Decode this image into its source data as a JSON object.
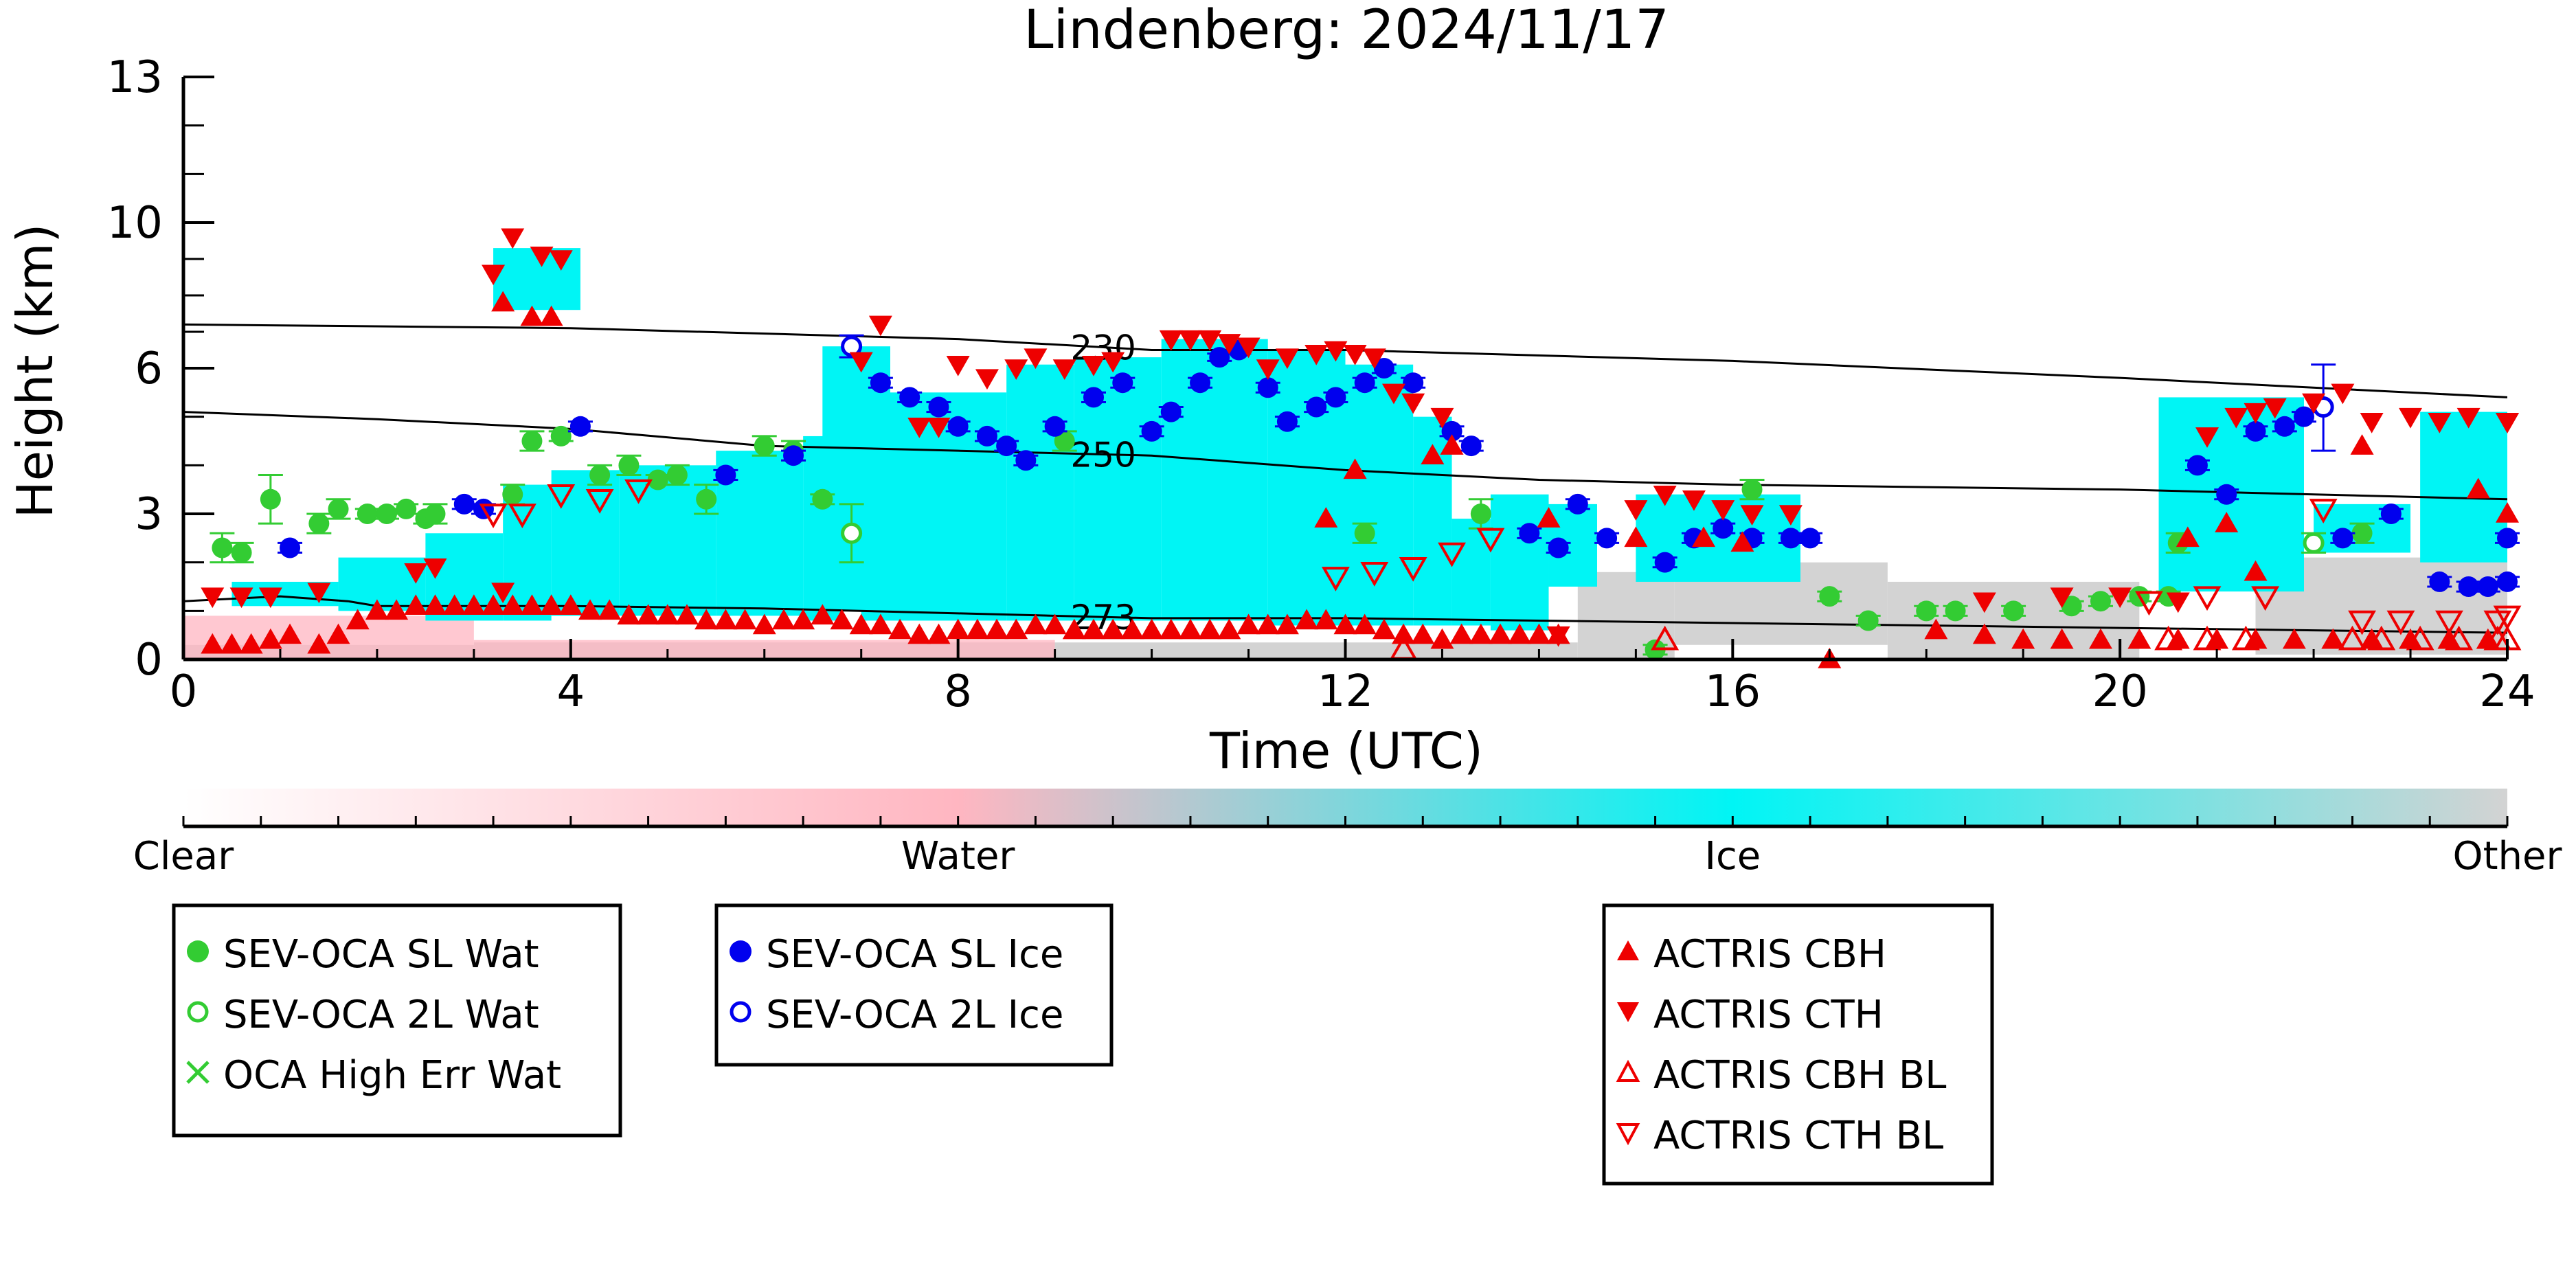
{
  "chart_data": {
    "type": "scatter",
    "title": "Lindenberg: 2024/11/17",
    "xlabel": "Time (UTC)",
    "ylabel": "Height (km)",
    "xlim": [
      0,
      24
    ],
    "ylim": [
      0,
      13
    ],
    "x_ticks": [
      0,
      4,
      8,
      12,
      16,
      20,
      24
    ],
    "y_ticks": [
      0,
      3,
      6,
      10,
      13
    ],
    "y_scale": "piecewise-linear",
    "colorbar": {
      "labels": [
        "Clear",
        "Water",
        "Ice",
        "Other"
      ],
      "colors": [
        "#ffffff",
        "#ffb6c1",
        "#00f5f5",
        "#d3d3d3"
      ]
    },
    "contour_lines": [
      {
        "label": "230",
        "x": [
          0,
          4,
          8,
          10,
          12,
          16,
          20,
          24
        ],
        "y": [
          7.2,
          7.1,
          6.8,
          6.5,
          6.5,
          6.2,
          5.8,
          5.4
        ]
      },
      {
        "label": "250",
        "x": [
          0,
          2,
          4,
          6,
          8,
          10,
          12,
          14,
          16,
          18,
          20,
          24
        ],
        "y": [
          5.1,
          4.95,
          4.75,
          4.4,
          4.3,
          4.2,
          3.9,
          3.7,
          3.6,
          3.55,
          3.5,
          3.3
        ]
      },
      {
        "label": "273",
        "x": [
          0,
          1,
          1.7,
          2,
          4,
          6,
          8,
          10,
          12,
          14,
          16,
          18,
          20,
          22,
          24
        ],
        "y": [
          1.2,
          1.3,
          1.2,
          1.1,
          1.1,
          1.05,
          0.95,
          0.85,
          0.85,
          0.8,
          0.75,
          0.7,
          0.65,
          0.6,
          0.55
        ]
      }
    ],
    "series": [
      {
        "name": "SEV-OCA SL Wat",
        "color": "#33cc33",
        "marker": "filled-circle",
        "x": [
          0.4,
          0.6,
          0.9,
          1.4,
          1.6,
          1.9,
          2.1,
          2.3,
          2.5,
          2.6,
          3.4,
          3.6,
          3.9,
          4.3,
          4.6,
          4.9,
          5.1,
          5.4,
          6.0,
          6.3,
          6.6,
          9.1,
          12.2,
          13.4,
          15.2,
          16.2,
          17.0,
          17.4,
          18.0,
          18.3,
          18.9,
          19.5,
          19.8,
          20.2,
          20.5,
          20.6,
          22.5
        ],
        "y": [
          2.3,
          2.2,
          3.3,
          2.8,
          3.1,
          3.0,
          3.0,
          3.1,
          2.9,
          3.0,
          3.4,
          4.5,
          4.6,
          3.8,
          4.0,
          3.7,
          3.8,
          3.3,
          4.4,
          4.3,
          3.3,
          4.5,
          2.6,
          3.0,
          0.2,
          3.5,
          1.3,
          0.8,
          1.0,
          1.0,
          1.0,
          1.1,
          1.2,
          1.3,
          1.3,
          2.4,
          2.6
        ],
        "err": [
          0.3,
          0.2,
          0.5,
          0.2,
          0.2,
          0.1,
          0.1,
          0.1,
          0.1,
          0.2,
          0.2,
          0.2,
          0.1,
          0.2,
          0.2,
          0.1,
          0.2,
          0.3,
          0.2,
          0.2,
          0.1,
          0.2,
          0.2,
          0.3,
          0.1,
          0.2,
          0.1,
          0.1,
          0.1,
          0.1,
          0.1,
          0.1,
          0.1,
          0.1,
          0.1,
          0.2,
          0.2
        ]
      },
      {
        "name": "SEV-OCA 2L Wat",
        "color": "#33cc33",
        "marker": "open-circle",
        "x": [
          6.9,
          22.0
        ],
        "y": [
          2.6,
          2.4
        ],
        "err": [
          0.6,
          0.2
        ]
      },
      {
        "name": "OCA High Err Wat",
        "color": "#33cc33",
        "marker": "cross",
        "x": [],
        "y": []
      },
      {
        "name": "SEV-OCA SL Ice",
        "color": "#0000ee",
        "marker": "filled-circle",
        "x": [
          1.1,
          2.9,
          3.1,
          4.1,
          5.6,
          6.3,
          7.2,
          7.5,
          7.8,
          8.0,
          8.3,
          8.5,
          8.7,
          9.0,
          9.4,
          9.7,
          10.0,
          10.2,
          10.5,
          10.7,
          10.9,
          11.2,
          11.4,
          11.7,
          11.9,
          12.2,
          12.4,
          12.7,
          13.1,
          13.3,
          13.9,
          14.2,
          14.4,
          14.7,
          15.3,
          15.6,
          15.9,
          16.2,
          16.6,
          16.8,
          20.8,
          21.1,
          21.4,
          21.7,
          21.9,
          22.3,
          22.8,
          23.3,
          23.6,
          23.8,
          24.1,
          24.2
        ],
        "y": [
          2.3,
          3.2,
          3.1,
          4.8,
          3.8,
          4.2,
          5.7,
          5.4,
          5.2,
          4.8,
          4.6,
          4.4,
          4.1,
          4.8,
          5.4,
          5.7,
          4.7,
          5.1,
          5.7,
          6.3,
          6.5,
          5.6,
          4.9,
          5.2,
          5.4,
          5.7,
          6.0,
          5.7,
          4.7,
          4.4,
          2.6,
          2.3,
          3.2,
          2.5,
          2.0,
          2.5,
          2.7,
          2.5,
          2.5,
          2.5,
          4.0,
          3.4,
          4.7,
          4.8,
          5.0,
          2.5,
          3.0,
          1.6,
          1.5,
          1.5,
          2.5,
          1.6
        ],
        "err": [
          0.1,
          0.1,
          0.1,
          0.1,
          0.1,
          0.1,
          0.1,
          0.1,
          0.1,
          0.1,
          0.1,
          0.1,
          0.1,
          0.1,
          0.1,
          0.1,
          0.1,
          0.1,
          0.1,
          0.1,
          0.1,
          0.1,
          0.1,
          0.1,
          0.1,
          0.1,
          0.1,
          0.1,
          0.1,
          0.1,
          0.1,
          0.1,
          0.1,
          0.1,
          0.1,
          0.1,
          0.1,
          0.1,
          0.1,
          0.1,
          0.1,
          0.1,
          0.1,
          0.1,
          0.1,
          0.1,
          0.1,
          0.1,
          0.1,
          0.1,
          0.1,
          0.1
        ]
      },
      {
        "name": "SEV-OCA 2L Ice",
        "color": "#0000ee",
        "marker": "open-circle",
        "x": [
          6.9,
          22.1
        ],
        "y": [
          6.6,
          5.2
        ],
        "err": [
          0.3,
          0.9
        ]
      },
      {
        "name": "ACTRIS CBH",
        "color": "#ee0000",
        "marker": "filled-up-triangle",
        "x": [
          0.3,
          0.5,
          0.7,
          0.9,
          1.1,
          1.4,
          1.6,
          1.8,
          2.0,
          2.2,
          2.4,
          2.6,
          2.8,
          3.0,
          3.2,
          3.4,
          3.6,
          3.8,
          4.0,
          4.2,
          4.4,
          4.6,
          4.8,
          5.0,
          5.2,
          5.4,
          5.6,
          5.8,
          6.0,
          6.2,
          6.4,
          6.6,
          6.8,
          7.0,
          7.2,
          7.4,
          7.6,
          7.8,
          8.0,
          8.2,
          8.4,
          8.6,
          8.8,
          9.0,
          9.2,
          9.4,
          9.6,
          9.8,
          10.0,
          10.2,
          10.4,
          10.6,
          10.8,
          11.0,
          11.2,
          11.4,
          11.6,
          11.8,
          12.0,
          12.2,
          12.4,
          12.6,
          12.8,
          13.0,
          13.2,
          13.4,
          13.6,
          13.8,
          14.0,
          14.2,
          3.3,
          3.6,
          3.8,
          12.9,
          13.1,
          11.8,
          12.1,
          14.1,
          15.0,
          15.7,
          16.1,
          17.0,
          18.1,
          18.6,
          19.0,
          19.4,
          19.8,
          20.2,
          20.6,
          21.0,
          21.4,
          21.8,
          22.2,
          22.6,
          23.0,
          23.4,
          23.8,
          20.7,
          21.1,
          21.4,
          22.5,
          23.7,
          24.1
        ],
        "y": [
          0.3,
          0.3,
          0.3,
          0.4,
          0.5,
          0.3,
          0.5,
          0.8,
          1.0,
          1.0,
          1.1,
          1.1,
          1.1,
          1.1,
          1.1,
          1.1,
          1.1,
          1.1,
          1.1,
          1.0,
          1.0,
          0.9,
          0.9,
          0.9,
          0.9,
          0.8,
          0.8,
          0.8,
          0.7,
          0.8,
          0.8,
          0.9,
          0.8,
          0.7,
          0.7,
          0.6,
          0.5,
          0.5,
          0.6,
          0.6,
          0.6,
          0.6,
          0.7,
          0.7,
          0.6,
          0.6,
          0.6,
          0.6,
          0.6,
          0.6,
          0.6,
          0.6,
          0.6,
          0.7,
          0.7,
          0.7,
          0.8,
          0.8,
          0.7,
          0.7,
          0.6,
          0.5,
          0.5,
          0.4,
          0.5,
          0.5,
          0.5,
          0.5,
          0.5,
          0.5,
          7.8,
          7.4,
          7.4,
          4.2,
          4.4,
          2.9,
          3.9,
          2.9,
          2.5,
          2.5,
          2.4,
          0.0,
          0.6,
          0.5,
          0.4,
          0.4,
          0.4,
          0.4,
          0.4,
          0.4,
          0.4,
          0.4,
          0.4,
          0.4,
          0.4,
          0.4,
          0.4,
          2.5,
          2.8,
          1.8,
          4.4,
          3.5,
          3.0
        ],
        "err": []
      },
      {
        "name": "ACTRIS CTH",
        "color": "#ee0000",
        "marker": "filled-down-triangle",
        "x": [
          0.3,
          0.6,
          0.9,
          1.4,
          2.4,
          2.6,
          3.2,
          3.4,
          3.7,
          3.9,
          7.0,
          7.2,
          7.6,
          7.8,
          8.0,
          8.3,
          8.6,
          8.8,
          9.1,
          9.4,
          9.6,
          10.2,
          10.4,
          10.6,
          10.8,
          11.0,
          11.2,
          11.4,
          11.7,
          11.9,
          12.1,
          12.3,
          12.5,
          12.7,
          13.0,
          15.0,
          15.3,
          15.6,
          15.9,
          16.2,
          16.6,
          18.6,
          19.4,
          20.0,
          20.6,
          20.9,
          21.2,
          21.4,
          21.6,
          22.0,
          22.3,
          22.6,
          23.0,
          23.3,
          23.6,
          24.0,
          24.2,
          24.3,
          14.2,
          3.3
        ],
        "y": [
          1.3,
          1.3,
          1.3,
          1.4,
          1.8,
          1.9,
          8.6,
          9.6,
          9.1,
          9.0,
          6.2,
          7.2,
          4.8,
          4.8,
          6.1,
          5.8,
          6.0,
          6.3,
          6.0,
          6.1,
          6.2,
          6.8,
          6.8,
          6.8,
          6.7,
          6.6,
          6.0,
          6.3,
          6.4,
          6.5,
          6.4,
          6.3,
          5.5,
          5.3,
          5.0,
          3.1,
          3.4,
          3.3,
          3.1,
          3.0,
          3.0,
          1.2,
          1.3,
          1.3,
          1.2,
          4.6,
          5.0,
          5.1,
          5.2,
          5.3,
          5.5,
          4.9,
          5.0,
          4.9,
          5.0,
          4.9,
          4.9,
          4.9,
          0.5,
          1.4
        ],
        "err": []
      },
      {
        "name": "ACTRIS CBH BL",
        "color": "#ee0000",
        "marker": "open-up-triangle",
        "x": [
          12.6,
          15.3,
          20.5,
          20.9,
          21.3,
          22.4,
          22.7,
          23.1,
          23.5,
          23.9,
          24.2
        ],
        "y": [
          0.2,
          0.4,
          0.4,
          0.4,
          0.4,
          0.4,
          0.4,
          0.4,
          0.4,
          0.4,
          0.4
        ],
        "err": []
      },
      {
        "name": "ACTRIS CTH BL",
        "color": "#ee0000",
        "marker": "open-down-triangle",
        "x": [
          3.9,
          4.3,
          4.7,
          11.9,
          12.3,
          12.7,
          13.1,
          13.5,
          20.3,
          20.9,
          21.5,
          22.1,
          22.5,
          22.9,
          23.4,
          23.9,
          24.3,
          3.2,
          3.5
        ],
        "y": [
          3.4,
          3.3,
          3.5,
          1.7,
          1.8,
          1.9,
          2.2,
          2.5,
          1.2,
          1.3,
          1.3,
          3.1,
          0.8,
          0.8,
          0.8,
          0.8,
          0.9,
          3.0,
          3.0
        ],
        "err": []
      }
    ],
    "cloud_fields": [
      {
        "phase": "Ice",
        "color": "#00f5f5",
        "blocks": [
          [
            0.5,
            1.6,
            1.1,
            1.6
          ],
          [
            1.6,
            2.5,
            1.0,
            2.1
          ],
          [
            2.5,
            3.3,
            0.8,
            2.6
          ],
          [
            3.3,
            3.8,
            0.8,
            3.6
          ],
          [
            3.8,
            4.5,
            0.9,
            3.9
          ],
          [
            4.5,
            5.5,
            0.9,
            4.0
          ],
          [
            5.5,
            6.4,
            0.9,
            4.3
          ],
          [
            6.4,
            6.8,
            0.8,
            4.6
          ],
          [
            6.6,
            7.3,
            1.0,
            6.6
          ],
          [
            7.0,
            8.5,
            0.8,
            5.5
          ],
          [
            8.5,
            9.2,
            0.8,
            6.1
          ],
          [
            9.2,
            10.1,
            0.8,
            6.3
          ],
          [
            10.1,
            11.2,
            0.8,
            6.8
          ],
          [
            11.2,
            12.0,
            0.7,
            6.5
          ],
          [
            12.0,
            12.7,
            0.7,
            6.1
          ],
          [
            12.7,
            13.1,
            0.7,
            5.0
          ],
          [
            13.1,
            13.5,
            0.7,
            2.9
          ],
          [
            13.5,
            14.1,
            0.6,
            3.4
          ],
          [
            14.1,
            14.6,
            1.5,
            3.2
          ],
          [
            15.0,
            16.7,
            1.6,
            3.4
          ],
          [
            20.4,
            21.9,
            1.4,
            5.4
          ],
          [
            22.0,
            23.0,
            2.2,
            3.2
          ],
          [
            23.1,
            24.3,
            2.0,
            5.1
          ],
          [
            3.2,
            4.1,
            7.6,
            9.3
          ]
        ]
      },
      {
        "phase": "Water",
        "color": "#ffb6c1",
        "blocks": [
          [
            0.0,
            3.0,
            0.0,
            0.9
          ],
          [
            3.0,
            9.0,
            0.0,
            0.4
          ]
        ]
      },
      {
        "phase": "Other",
        "color": "#d3d3d3",
        "blocks": [
          [
            0.0,
            3.0,
            0.0,
            0.3
          ],
          [
            14.4,
            15.4,
            0.0,
            1.8
          ],
          [
            15.4,
            17.6,
            0.3,
            2.0
          ],
          [
            17.6,
            20.2,
            0.0,
            1.6
          ],
          [
            21.4,
            24.3,
            0.1,
            2.1
          ],
          [
            3.0,
            14.4,
            0.0,
            0.35
          ]
        ]
      }
    ],
    "legends": [
      {
        "entries": [
          "SEV-OCA SL Wat",
          "SEV-OCA 2L Wat",
          "OCA High Err Wat"
        ]
      },
      {
        "entries": [
          "SEV-OCA SL Ice",
          "SEV-OCA 2L Ice"
        ]
      },
      {
        "entries": [
          "ACTRIS CBH",
          "ACTRIS CTH",
          "ACTRIS CBH BL",
          "ACTRIS CTH BL"
        ]
      }
    ]
  }
}
